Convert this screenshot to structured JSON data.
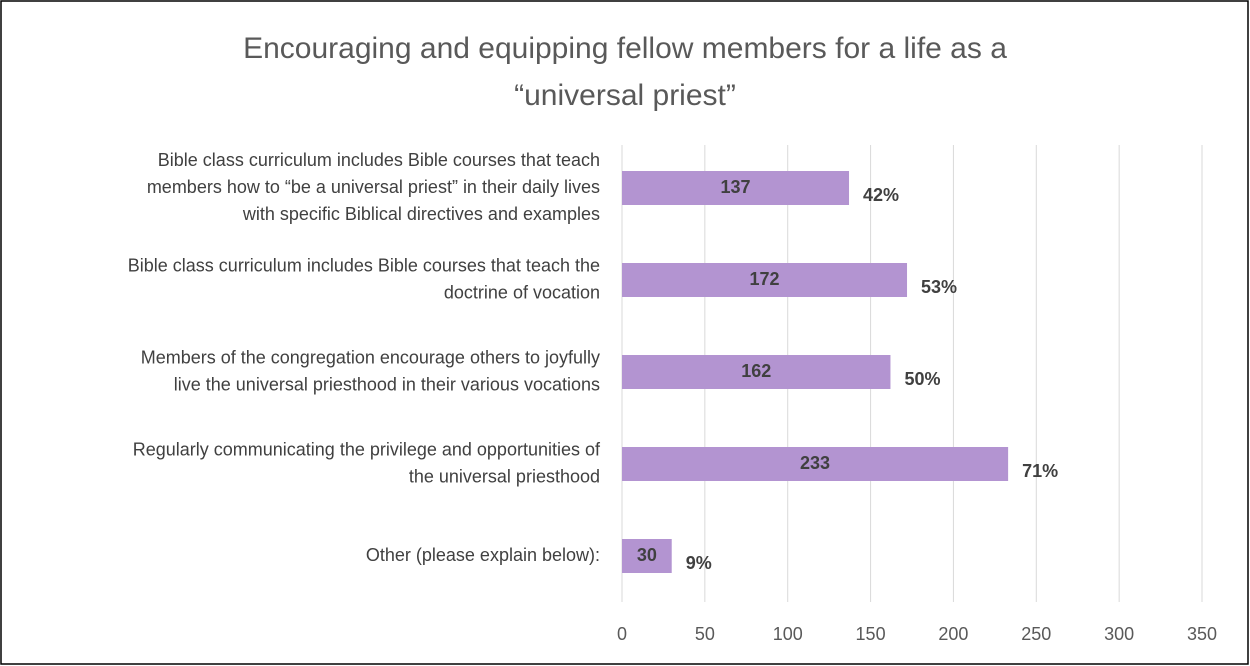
{
  "chart_data": {
    "type": "bar",
    "orientation": "horizontal",
    "title": [
      "Encouraging and equipping fellow members for a life as a",
      "“universal priest”"
    ],
    "categories": [
      [
        "Bible class curriculum includes Bible courses that teach",
        "members how to “be a universal priest” in their daily lives",
        "with specific Biblical directives and examples"
      ],
      [
        "Bible class curriculum includes Bible courses that teach the",
        "doctrine of vocation"
      ],
      [
        "Members of the congregation encourage others to joyfully",
        "live the universal priesthood in their various vocations"
      ],
      [
        "Regularly communicating the privilege and opportunities of",
        "the universal priesthood"
      ],
      [
        "Other (please explain below):"
      ]
    ],
    "values": [
      137,
      172,
      162,
      233,
      30
    ],
    "percent_labels": [
      "42%",
      "53%",
      "50%",
      "71%",
      "9%"
    ],
    "color": "#b394d1",
    "xlim": [
      0,
      350
    ],
    "xticks": [
      0,
      50,
      100,
      150,
      200,
      250,
      300,
      350
    ],
    "grid": true
  }
}
